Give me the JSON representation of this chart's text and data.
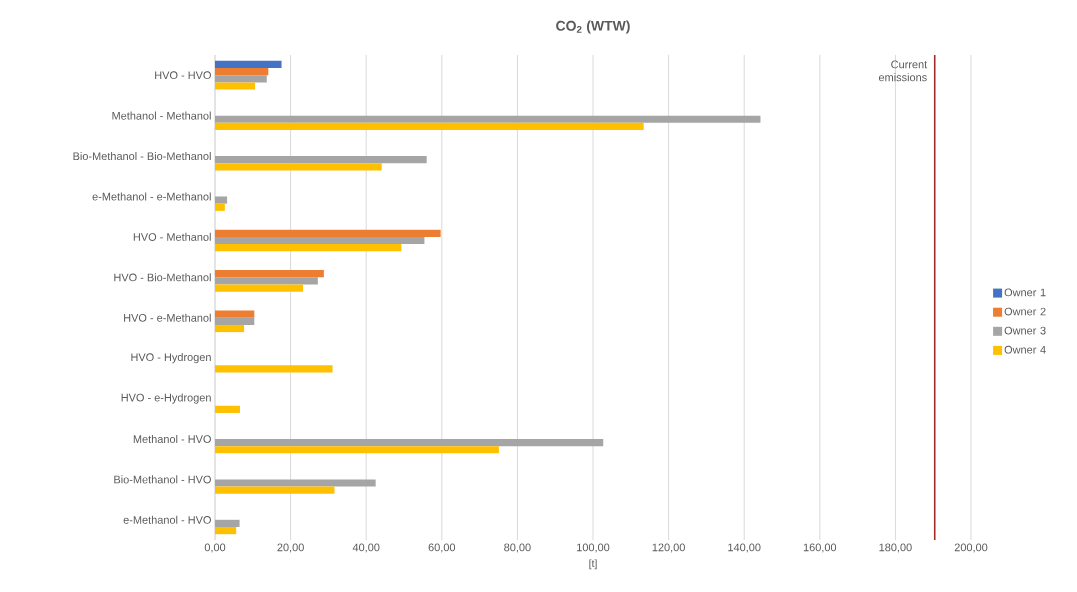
{
  "chart_data": {
    "type": "bar",
    "orientation": "horizontal",
    "title": "CO$_{2}$ (WTW)",
    "xlabel": "[t]",
    "categories": [
      "HVO - HVO",
      "Methanol - Methanol",
      "Bio-Methanol - Bio-Methanol",
      "e-Methanol - e-Methanol",
      "HVO - Methanol",
      "HVO - Bio-Methanol",
      "HVO - e-Methanol",
      "HVO - Hydrogen",
      "HVO - e-Hydrogen",
      "Methanol - HVO",
      "Bio-Methanol - HVO",
      "e-Methanol - HVO"
    ],
    "series": [
      {
        "name": "Owner 1",
        "color": "#4472c4",
        "values": [
          17.6,
          null,
          null,
          null,
          null,
          null,
          null,
          null,
          null,
          null,
          null,
          null
        ]
      },
      {
        "name": "Owner 2",
        "color": "#ed7d31",
        "values": [
          14.1,
          null,
          null,
          null,
          59.7,
          28.8,
          10.4,
          null,
          null,
          null,
          null,
          null
        ]
      },
      {
        "name": "Owner 3",
        "color": "#a5a5a5",
        "values": [
          13.7,
          144.3,
          56.0,
          3.2,
          55.4,
          27.2,
          10.4,
          null,
          null,
          102.7,
          42.5,
          6.5
        ]
      },
      {
        "name": "Owner 4",
        "color": "#ffc000",
        "values": [
          10.6,
          113.4,
          44.1,
          2.6,
          49.3,
          23.3,
          7.7,
          31.1,
          6.6,
          75.1,
          31.6,
          5.6
        ]
      }
    ],
    "xlim": [
      0,
      200
    ],
    "xticks": [
      {
        "value": 0,
        "label": "0,00"
      },
      {
        "value": 20,
        "label": "20,00"
      },
      {
        "value": 40,
        "label": "40,00"
      },
      {
        "value": 60,
        "label": "60,00"
      },
      {
        "value": 80,
        "label": "80,00"
      },
      {
        "value": 100,
        "label": "100,00"
      },
      {
        "value": 120,
        "label": "120,00"
      },
      {
        "value": 140,
        "label": "140,00"
      },
      {
        "value": 160,
        "label": "160,00"
      },
      {
        "value": 180,
        "label": "180,00"
      },
      {
        "value": 200,
        "label": "200,00"
      }
    ],
    "ref_lines": [
      {
        "axis": "x",
        "value": 190.4,
        "label": "Current emissions",
        "color": "#a52a2a"
      }
    ],
    "grid": "x",
    "legend": "right"
  }
}
